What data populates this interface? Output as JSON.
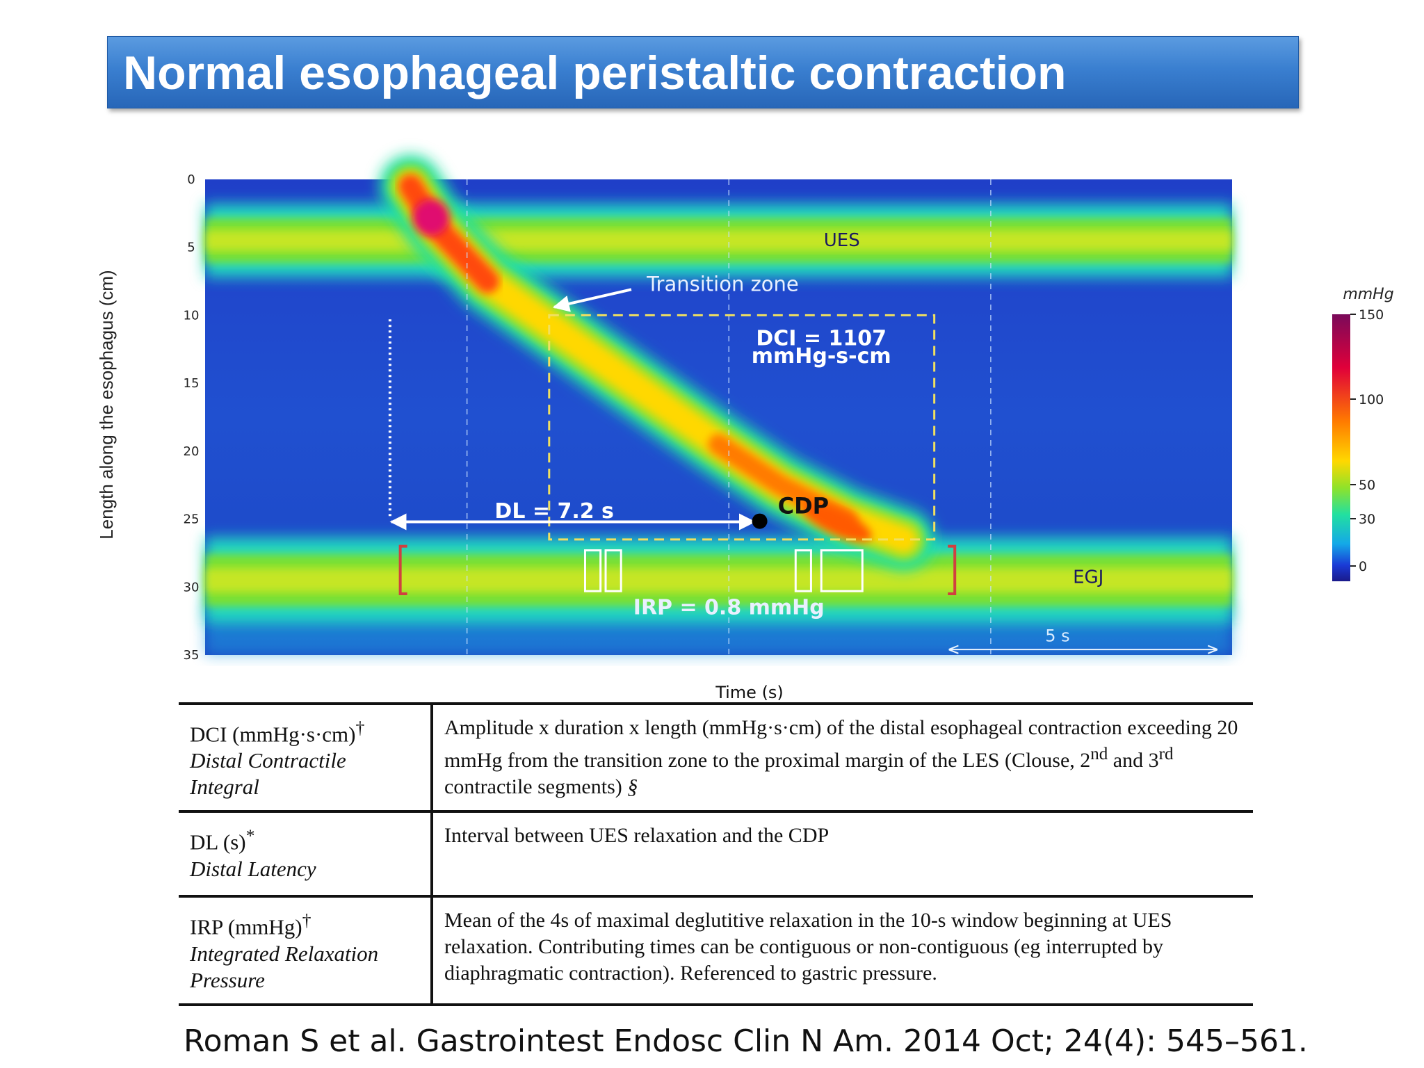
{
  "slide_title": "Normal esophageal peristaltic contraction",
  "chart_data": {
    "type": "heatmap",
    "title": "",
    "xlabel": "Time (s)",
    "ylabel": "Length along the esophagus (cm)",
    "y_ticks": [
      0,
      5,
      10,
      15,
      20,
      25,
      30,
      35
    ],
    "y_tick_labels": [
      "0",
      "5",
      "10",
      "15",
      "20",
      "25",
      "30",
      "35"
    ],
    "ylim": [
      0,
      35
    ],
    "x_span_s": 20,
    "scale_bar_s": 5,
    "scale_bar_label": "5 s",
    "colorbar": {
      "unit": "mmHg",
      "ticks": [
        150,
        100,
        50,
        30,
        0
      ],
      "tick_labels": [
        "150",
        "100",
        "50",
        "30",
        "0"
      ],
      "colors": [
        "#7a0a5a",
        "#e0003a",
        "#ff6a00",
        "#ffd800",
        "#8fe22a",
        "#22e0a0",
        "#14a8e8",
        "#1a3ad6",
        "#1a1a8a"
      ]
    },
    "bands": [
      {
        "name": "UES",
        "label": "UES",
        "t_start": 0,
        "t_end": 20,
        "y_center": 4.5,
        "width": 3
      },
      {
        "name": "EGJ",
        "label": "EGJ",
        "t_start": 0,
        "t_end": 20,
        "y_center": 29.5,
        "width": 3.5
      }
    ],
    "contraction_front": {
      "t": [
        4.0,
        4.5,
        5.5,
        7.0,
        8.5,
        10.0,
        11.2,
        12.5,
        13.6
      ],
      "y": [
        0.5,
        3.5,
        7.5,
        11.5,
        15.5,
        19.5,
        22.5,
        25.0,
        26.5
      ]
    },
    "dci_box": {
      "t_start": 6.7,
      "t_end": 14.2,
      "y_start": 10,
      "y_end": 26.5
    },
    "irp_windows": [
      {
        "t_start": 7.4,
        "t_end": 7.7
      },
      {
        "t_start": 7.8,
        "t_end": 8.1
      },
      {
        "t_start": 11.5,
        "t_end": 11.8
      },
      {
        "t_start": 12.0,
        "t_end": 12.8
      }
    ],
    "ues_relaxation_t": 3.6,
    "cdp": {
      "t": 10.8,
      "y": 25,
      "label": "CDP"
    },
    "gridlines_t": [
      5.1,
      10.2,
      15.3
    ],
    "annotations": {
      "ues": "UES",
      "egj": "EGJ",
      "transition_zone": "Transition zone",
      "dci_line1": "DCI = 1107",
      "dci_line2": "mmHg-s-cm",
      "dl": "DL = 7.2 s",
      "irp": "IRP = 0.8 mmHg"
    }
  },
  "definitions": [
    {
      "abbr": "DCI (mmHg·s·cm)",
      "mark": "†",
      "full": "Distal Contractile Integral",
      "definition_part1": "Amplitude x duration x length (mmHg·s·cm) of the distal esophageal contraction exceeding 20 mmHg from the transition zone to the proximal margin of the LES (Clouse, 2",
      "sup1": "nd",
      "definition_part2": " and 3",
      "sup2": "rd",
      "definition_part3": " contractile segments) ",
      "def_mark": "§"
    },
    {
      "abbr": "DL (s)",
      "mark": "*",
      "full": "Distal Latency",
      "definition": "Interval between UES relaxation and the CDP"
    },
    {
      "abbr": "IRP (mmHg)",
      "mark": "†",
      "full": "Integrated Relaxation Pressure",
      "definition": "Mean of the 4s of maximal deglutitive relaxation in the 10-s window beginning at UES relaxation. Contributing times can be contiguous or non-contiguous (eg interrupted by diaphragmatic contraction). Referenced to gastric pressure."
    }
  ],
  "citation": "Roman S et al. Gastrointest Endosc Clin N Am. 2014 Oct; 24(4): 545–561."
}
